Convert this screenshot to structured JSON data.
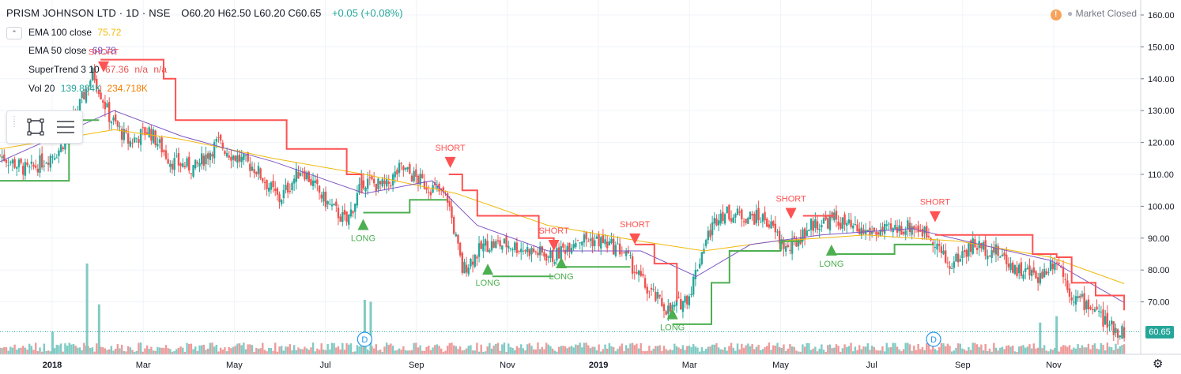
{
  "header": {
    "title": "PRISM JOHNSON LTD · 1D · NSE",
    "ohlc": "O60.20 H62.50 L60.20 C60.65",
    "change": "+0.05 (+0.08%)"
  },
  "indicators": [
    {
      "name": "EMA 100 close",
      "value": "75.72",
      "color": "#f0b90b"
    },
    {
      "name": "EMA 50 close",
      "value": "69.78",
      "color": "#7e57c2"
    },
    {
      "name": "SuperTrend 3 10",
      "value": "67.36",
      "extra1": "n/a",
      "extra2": "n/a",
      "color": "#ef5350"
    },
    {
      "name": "Vol 20",
      "value": "139.884K",
      "extra1": "234.718K",
      "color": "#26a69a"
    }
  ],
  "market_status": "Market Closed",
  "warning_icon": "!",
  "last_price": "60.65",
  "colors": {
    "up": "#26a69a",
    "down": "#ef5350",
    "ema100": "#f0b90b",
    "ema50": "#7e57c2",
    "st_up": "#4caf50",
    "st_down": "#ff5252",
    "vol_up": "#80cbc4",
    "vol_down": "#ef9a9a"
  },
  "chart_data": {
    "type": "candlestick",
    "x_range": [
      "2017-12-01",
      "2019-12-31"
    ],
    "ylim": [
      60,
      160
    ],
    "y_ticks": [
      "160.00",
      "150.00",
      "140.00",
      "130.00",
      "120.00",
      "110.00",
      "100.00",
      "90.00",
      "80.00",
      "70.00"
    ],
    "x_ticks": [
      "2018",
      "Mar",
      "May",
      "Jul",
      "Sep",
      "Nov",
      "2019",
      "Mar",
      "May",
      "Jul",
      "Sep",
      "Nov"
    ],
    "grid": true,
    "price_path": [
      [
        "2017-12-01",
        116
      ],
      [
        "2017-12-20",
        111
      ],
      [
        "2018-01-10",
        118
      ],
      [
        "2018-01-20",
        128
      ],
      [
        "2018-02-01",
        142
      ],
      [
        "2018-02-12",
        128
      ],
      [
        "2018-02-25",
        120
      ],
      [
        "2018-03-10",
        124
      ],
      [
        "2018-03-25",
        114
      ],
      [
        "2018-04-10",
        112
      ],
      [
        "2018-04-25",
        120
      ],
      [
        "2018-05-05",
        116
      ],
      [
        "2018-05-20",
        112
      ],
      [
        "2018-06-05",
        102
      ],
      [
        "2018-06-20",
        112
      ],
      [
        "2018-07-05",
        102
      ],
      [
        "2018-07-20",
        95
      ],
      [
        "2018-07-31",
        108
      ],
      [
        "2018-08-15",
        106
      ],
      [
        "2018-08-25",
        112
      ],
      [
        "2018-09-10",
        107
      ],
      [
        "2018-09-25",
        103
      ],
      [
        "2018-10-05",
        80
      ],
      [
        "2018-10-20",
        88
      ],
      [
        "2018-11-05",
        88
      ],
      [
        "2018-11-20",
        86
      ],
      [
        "2018-12-05",
        84
      ],
      [
        "2018-12-20",
        90
      ],
      [
        "2019-01-05",
        89
      ],
      [
        "2019-01-20",
        86
      ],
      [
        "2019-02-05",
        74
      ],
      [
        "2019-02-20",
        67
      ],
      [
        "2019-03-05",
        72
      ],
      [
        "2019-03-15",
        88
      ],
      [
        "2019-03-25",
        98
      ],
      [
        "2019-04-10",
        97
      ],
      [
        "2019-04-25",
        96
      ],
      [
        "2019-05-10",
        86
      ],
      [
        "2019-05-25",
        94
      ],
      [
        "2019-06-10",
        96
      ],
      [
        "2019-06-25",
        92
      ],
      [
        "2019-07-15",
        92
      ],
      [
        "2019-08-01",
        94
      ],
      [
        "2019-08-15",
        90
      ],
      [
        "2019-08-25",
        81
      ],
      [
        "2019-09-10",
        88
      ],
      [
        "2019-09-25",
        86
      ],
      [
        "2019-10-10",
        80
      ],
      [
        "2019-10-25",
        78
      ],
      [
        "2019-11-05",
        84
      ],
      [
        "2019-11-15",
        72
      ],
      [
        "2019-11-30",
        68
      ],
      [
        "2019-12-10",
        62
      ],
      [
        "2019-12-20",
        60.65
      ]
    ],
    "ema100": [
      [
        "2017-12-01",
        118
      ],
      [
        "2018-02-15",
        124
      ],
      [
        "2018-04-01",
        121
      ],
      [
        "2018-06-01",
        115
      ],
      [
        "2018-08-01",
        110
      ],
      [
        "2018-10-01",
        104
      ],
      [
        "2018-12-01",
        94
      ],
      [
        "2019-02-01",
        89
      ],
      [
        "2019-03-15",
        86
      ],
      [
        "2019-05-01",
        89
      ],
      [
        "2019-07-01",
        91
      ],
      [
        "2019-09-01",
        89
      ],
      [
        "2019-11-01",
        84
      ],
      [
        "2019-12-20",
        75.72
      ]
    ],
    "ema50": [
      [
        "2017-12-01",
        114
      ],
      [
        "2018-02-15",
        130
      ],
      [
        "2018-04-01",
        122
      ],
      [
        "2018-06-01",
        114
      ],
      [
        "2018-08-01",
        104
      ],
      [
        "2018-09-15",
        108
      ],
      [
        "2018-10-15",
        94
      ],
      [
        "2018-12-01",
        86
      ],
      [
        "2019-02-01",
        86
      ],
      [
        "2019-03-10",
        78
      ],
      [
        "2019-04-15",
        88
      ],
      [
        "2019-06-01",
        91
      ],
      [
        "2019-08-01",
        93
      ],
      [
        "2019-09-15",
        88
      ],
      [
        "2019-11-01",
        83
      ],
      [
        "2019-12-20",
        69.78
      ]
    ],
    "supertrend_segments": [
      {
        "dir": "up",
        "pts": [
          [
            "2017-12-01",
            108
          ],
          [
            "2018-01-15",
            108
          ],
          [
            "2018-01-16",
            127
          ],
          [
            "2018-02-05",
            127
          ]
        ]
      },
      {
        "dir": "down",
        "pts": [
          [
            "2018-02-06",
            146
          ],
          [
            "2018-03-01",
            146
          ],
          [
            "2018-03-20",
            140
          ],
          [
            "2018-03-28",
            127
          ],
          [
            "2018-06-01",
            127
          ],
          [
            "2018-06-10",
            118
          ],
          [
            "2018-07-10",
            118
          ],
          [
            "2018-07-20",
            110
          ],
          [
            "2018-07-30",
            104
          ]
        ]
      },
      {
        "dir": "up",
        "pts": [
          [
            "2018-07-31",
            98
          ],
          [
            "2018-08-20",
            98
          ],
          [
            "2018-08-31",
            102
          ],
          [
            "2018-09-25",
            102
          ]
        ]
      },
      {
        "dir": "down",
        "pts": [
          [
            "2018-09-26",
            110
          ],
          [
            "2018-10-05",
            105
          ],
          [
            "2018-10-15",
            97
          ],
          [
            "2018-11-25",
            90
          ],
          [
            "2018-12-05",
            88
          ]
        ]
      },
      {
        "dir": "up",
        "pts": [
          [
            "2018-10-25",
            78
          ],
          [
            "2018-12-05",
            78
          ]
        ]
      },
      {
        "dir": "up",
        "pts": [
          [
            "2018-12-10",
            81
          ],
          [
            "2019-01-25",
            81
          ]
        ]
      },
      {
        "dir": "down",
        "pts": [
          [
            "2019-01-28",
            88
          ],
          [
            "2019-02-10",
            82
          ],
          [
            "2019-02-25",
            70
          ]
        ]
      },
      {
        "dir": "up",
        "pts": [
          [
            "2019-02-22",
            63
          ],
          [
            "2019-03-10",
            63
          ],
          [
            "2019-03-20",
            76
          ],
          [
            "2019-04-01",
            86
          ],
          [
            "2019-05-01",
            86
          ],
          [
            "2019-05-05",
            89
          ],
          [
            "2019-05-20",
            89
          ]
        ]
      },
      {
        "dir": "down",
        "pts": [
          [
            "2019-05-20",
            97
          ],
          [
            "2019-06-10",
            97
          ]
        ]
      },
      {
        "dir": "up",
        "pts": [
          [
            "2019-06-08",
            85
          ],
          [
            "2019-07-15",
            85
          ],
          [
            "2019-07-20",
            88
          ],
          [
            "2019-08-15",
            88
          ]
        ]
      },
      {
        "dir": "down",
        "pts": [
          [
            "2019-08-16",
            91
          ],
          [
            "2019-09-15",
            91
          ],
          [
            "2019-10-10",
            91
          ],
          [
            "2019-10-20",
            85
          ],
          [
            "2019-11-05",
            84
          ],
          [
            "2019-11-15",
            76
          ],
          [
            "2019-12-01",
            72
          ],
          [
            "2019-12-20",
            67.36
          ]
        ]
      }
    ],
    "signals": [
      {
        "type": "SHORT",
        "date": "2018-02-08",
        "price": 142
      },
      {
        "type": "LONG",
        "date": "2018-07-31",
        "price": 96
      },
      {
        "type": "SHORT",
        "date": "2018-09-27",
        "price": 112
      },
      {
        "type": "LONG",
        "date": "2018-10-22",
        "price": 82
      },
      {
        "type": "SHORT",
        "date": "2018-12-05",
        "price": 86
      },
      {
        "type": "LONG",
        "date": "2018-12-10",
        "price": 84
      },
      {
        "type": "SHORT",
        "date": "2019-01-28",
        "price": 88
      },
      {
        "type": "LONG",
        "date": "2019-02-22",
        "price": 68
      },
      {
        "type": "SHORT",
        "date": "2019-05-12",
        "price": 96
      },
      {
        "type": "LONG",
        "date": "2019-06-08",
        "price": 88
      },
      {
        "type": "SHORT",
        "date": "2019-08-16",
        "price": 95
      }
    ],
    "dividend_markers": [
      {
        "label": "D",
        "date": "2018-08-01"
      },
      {
        "label": "D",
        "date": "2019-08-15"
      }
    ],
    "volume_spikes": [
      {
        "date": "2018-01-05",
        "v": 0.25
      },
      {
        "date": "2018-01-28",
        "v": 1.0
      },
      {
        "date": "2018-02-05",
        "v": 0.55
      },
      {
        "date": "2018-08-01",
        "v": 0.6
      },
      {
        "date": "2018-08-05",
        "v": 0.58
      },
      {
        "date": "2019-10-25",
        "v": 0.35
      },
      {
        "date": "2019-11-05",
        "v": 0.42
      }
    ]
  }
}
